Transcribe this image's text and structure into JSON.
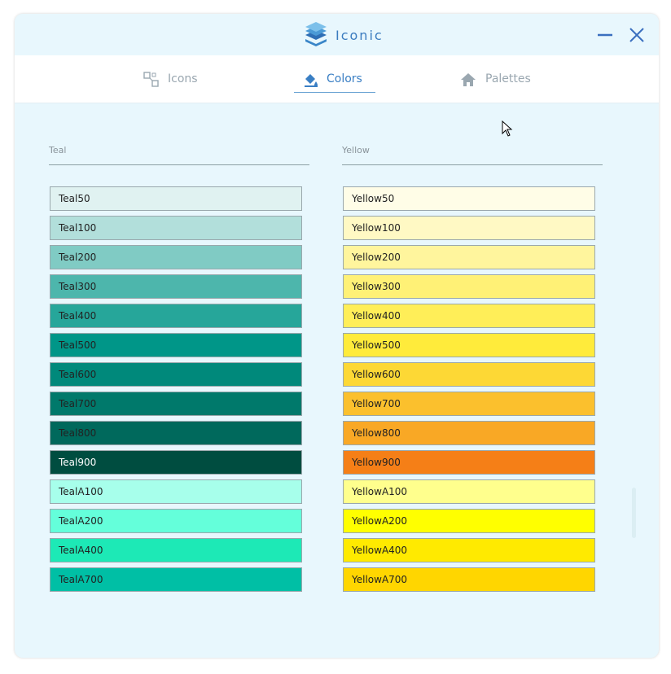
{
  "app": {
    "title": "Iconic"
  },
  "tabs": {
    "icons": "Icons",
    "colors": "Colors",
    "palettes": "Palettes",
    "active": "colors"
  },
  "theme": {
    "accent": "#3a7fc4",
    "window_bg": "#e8f7fd"
  },
  "columns": [
    {
      "header": "Teal",
      "swatches": [
        {
          "label": "Teal50",
          "color": "#e0f2f1",
          "text": "#222222"
        },
        {
          "label": "Teal100",
          "color": "#b2dfdb",
          "text": "#222222"
        },
        {
          "label": "Teal200",
          "color": "#80cbc4",
          "text": "#222222"
        },
        {
          "label": "Teal300",
          "color": "#4db6ac",
          "text": "#222222"
        },
        {
          "label": "Teal400",
          "color": "#26a69a",
          "text": "#222222"
        },
        {
          "label": "Teal500",
          "color": "#009688",
          "text": "#222222"
        },
        {
          "label": "Teal600",
          "color": "#00897b",
          "text": "#222222"
        },
        {
          "label": "Teal700",
          "color": "#00796b",
          "text": "#222222"
        },
        {
          "label": "Teal800",
          "color": "#00695c",
          "text": "#222222"
        },
        {
          "label": "Teal900",
          "color": "#004d40",
          "text": "#ffffff"
        },
        {
          "label": "TealA100",
          "color": "#a7ffeb",
          "text": "#222222"
        },
        {
          "label": "TealA200",
          "color": "#64ffda",
          "text": "#222222"
        },
        {
          "label": "TealA400",
          "color": "#1de9b6",
          "text": "#222222"
        },
        {
          "label": "TealA700",
          "color": "#00bfa5",
          "text": "#222222"
        }
      ]
    },
    {
      "header": "Yellow",
      "swatches": [
        {
          "label": "Yellow50",
          "color": "#fffde7",
          "text": "#222222"
        },
        {
          "label": "Yellow100",
          "color": "#fff9c4",
          "text": "#222222"
        },
        {
          "label": "Yellow200",
          "color": "#fff59d",
          "text": "#222222"
        },
        {
          "label": "Yellow300",
          "color": "#fff176",
          "text": "#222222"
        },
        {
          "label": "Yellow400",
          "color": "#ffee58",
          "text": "#222222"
        },
        {
          "label": "Yellow500",
          "color": "#ffeb3b",
          "text": "#222222"
        },
        {
          "label": "Yellow600",
          "color": "#fdd835",
          "text": "#222222"
        },
        {
          "label": "Yellow700",
          "color": "#fbc02d",
          "text": "#222222"
        },
        {
          "label": "Yellow800",
          "color": "#f9a825",
          "text": "#222222"
        },
        {
          "label": "Yellow900",
          "color": "#f57f17",
          "text": "#222222"
        },
        {
          "label": "YellowA100",
          "color": "#ffff8d",
          "text": "#222222"
        },
        {
          "label": "YellowA200",
          "color": "#ffff00",
          "text": "#222222"
        },
        {
          "label": "YellowA400",
          "color": "#ffea00",
          "text": "#222222"
        },
        {
          "label": "YellowA700",
          "color": "#ffd600",
          "text": "#222222"
        }
      ]
    }
  ]
}
